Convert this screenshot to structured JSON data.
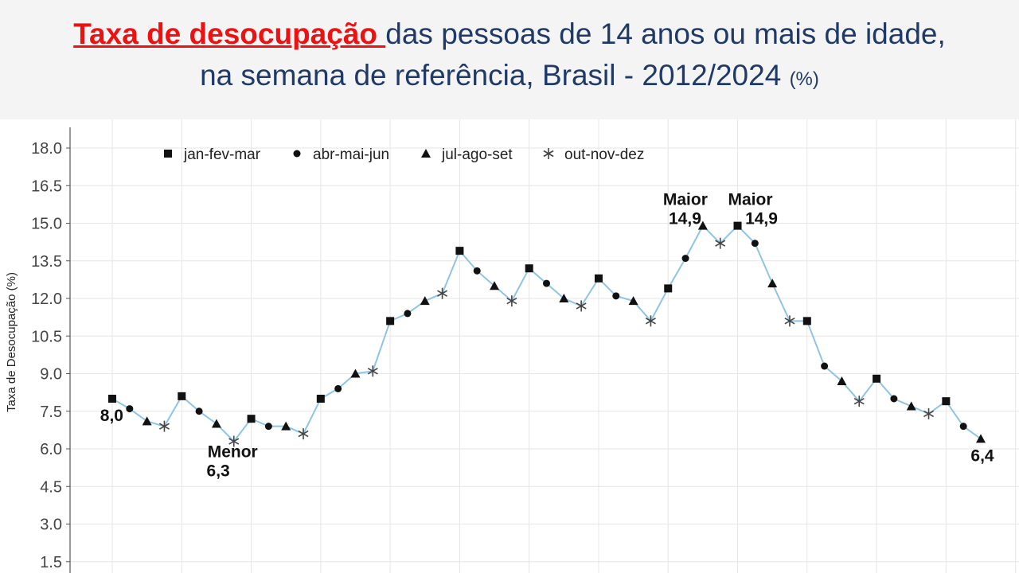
{
  "header": {
    "title_red": "Taxa de desocupação ",
    "title_rest": "das pessoas de 14 anos ou mais de idade,",
    "title_line2": "na semana de referência, Brasil - 2012/2024",
    "unit": "(%)"
  },
  "chart_data": {
    "type": "line",
    "ylabel": "Taxa de Desocupação (%)",
    "ylim": [
      1.5,
      18.0
    ],
    "yticks": [
      "1.5",
      "3.0",
      "4.5",
      "6.0",
      "7.5",
      "9.0",
      "10.5",
      "12.0",
      "13.5",
      "15.0",
      "16.5",
      "18.0"
    ],
    "grid": true,
    "legend_position": "top-left",
    "line_color": "#8ec4e4",
    "legend": [
      {
        "label": "jan-fev-mar",
        "marker": "square"
      },
      {
        "label": "abr-mai-jun",
        "marker": "circle"
      },
      {
        "label": "jul-ago-set",
        "marker": "triangle"
      },
      {
        "label": "out-nov-dez",
        "marker": "asterisk"
      }
    ],
    "points": [
      {
        "y": 8.0,
        "m": "square"
      },
      {
        "y": 7.6,
        "m": "circle"
      },
      {
        "y": 7.1,
        "m": "triangle"
      },
      {
        "y": 6.9,
        "m": "asterisk"
      },
      {
        "y": 8.1,
        "m": "square"
      },
      {
        "y": 7.5,
        "m": "circle"
      },
      {
        "y": 7.0,
        "m": "triangle"
      },
      {
        "y": 6.3,
        "m": "asterisk"
      },
      {
        "y": 7.2,
        "m": "square"
      },
      {
        "y": 6.9,
        "m": "circle"
      },
      {
        "y": 6.9,
        "m": "triangle"
      },
      {
        "y": 6.6,
        "m": "asterisk"
      },
      {
        "y": 8.0,
        "m": "square"
      },
      {
        "y": 8.4,
        "m": "circle"
      },
      {
        "y": 9.0,
        "m": "triangle"
      },
      {
        "y": 9.1,
        "m": "asterisk"
      },
      {
        "y": 11.1,
        "m": "square"
      },
      {
        "y": 11.4,
        "m": "circle"
      },
      {
        "y": 11.9,
        "m": "triangle"
      },
      {
        "y": 12.2,
        "m": "asterisk"
      },
      {
        "y": 13.9,
        "m": "square"
      },
      {
        "y": 13.1,
        "m": "circle"
      },
      {
        "y": 12.5,
        "m": "triangle"
      },
      {
        "y": 11.9,
        "m": "asterisk"
      },
      {
        "y": 13.2,
        "m": "square"
      },
      {
        "y": 12.6,
        "m": "circle"
      },
      {
        "y": 12.0,
        "m": "triangle"
      },
      {
        "y": 11.7,
        "m": "asterisk"
      },
      {
        "y": 12.8,
        "m": "square"
      },
      {
        "y": 12.1,
        "m": "circle"
      },
      {
        "y": 11.9,
        "m": "triangle"
      },
      {
        "y": 11.1,
        "m": "asterisk"
      },
      {
        "y": 12.4,
        "m": "square"
      },
      {
        "y": 13.6,
        "m": "circle"
      },
      {
        "y": 14.9,
        "m": "triangle"
      },
      {
        "y": 14.2,
        "m": "asterisk"
      },
      {
        "y": 14.9,
        "m": "square"
      },
      {
        "y": 14.2,
        "m": "circle"
      },
      {
        "y": 12.6,
        "m": "triangle"
      },
      {
        "y": 11.1,
        "m": "asterisk"
      },
      {
        "y": 11.1,
        "m": "square"
      },
      {
        "y": 9.3,
        "m": "circle"
      },
      {
        "y": 8.7,
        "m": "triangle"
      },
      {
        "y": 7.9,
        "m": "asterisk"
      },
      {
        "y": 8.8,
        "m": "square"
      },
      {
        "y": 8.0,
        "m": "circle"
      },
      {
        "y": 7.7,
        "m": "triangle"
      },
      {
        "y": 7.4,
        "m": "asterisk"
      },
      {
        "y": 7.9,
        "m": "square"
      },
      {
        "y": 6.9,
        "m": "circle"
      },
      {
        "y": 6.4,
        "m": "triangle"
      }
    ],
    "annotations": [
      {
        "index": 0,
        "lines": [
          "8,0"
        ],
        "anchor": "below-left"
      },
      {
        "index": 7,
        "lines": [
          "Menor",
          "6,3"
        ],
        "anchor": "below-left"
      },
      {
        "index": 34,
        "lines": [
          "Maior",
          "14,9"
        ],
        "anchor": "above-left"
      },
      {
        "index": 36,
        "lines": [
          "Maior",
          "14,9"
        ],
        "anchor": "above-right"
      },
      {
        "index": 50,
        "lines": [
          "6,4"
        ],
        "anchor": "below"
      }
    ]
  }
}
